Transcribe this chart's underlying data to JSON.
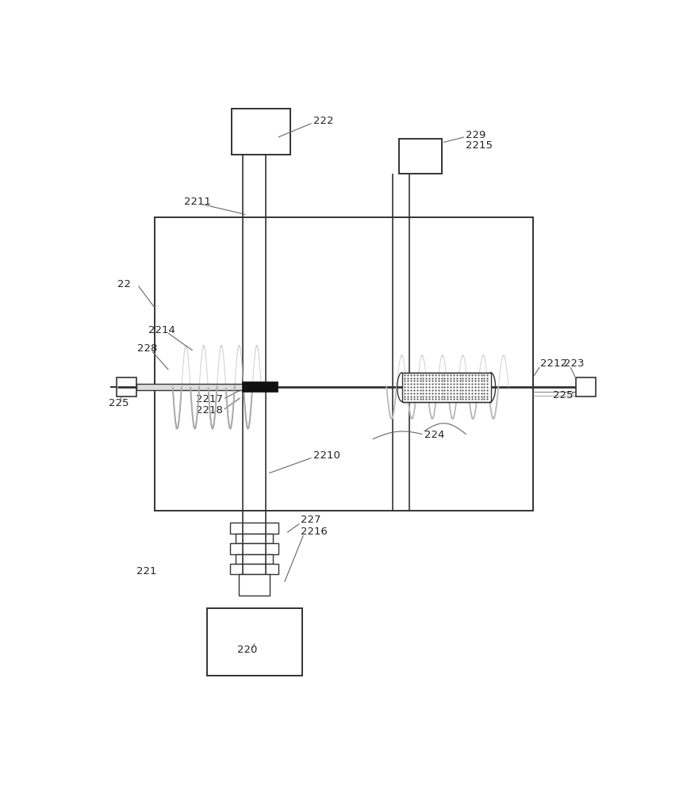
{
  "bg_color": "#ffffff",
  "line_color": "#333333",
  "label_color": "#222222",
  "figure_size": [
    8.62,
    10.0
  ],
  "dpi": 100,
  "coil_left_color": "#aaaaaa",
  "coil_right_color": "#bbbbbb",
  "filter_dot_color": "#444444"
}
